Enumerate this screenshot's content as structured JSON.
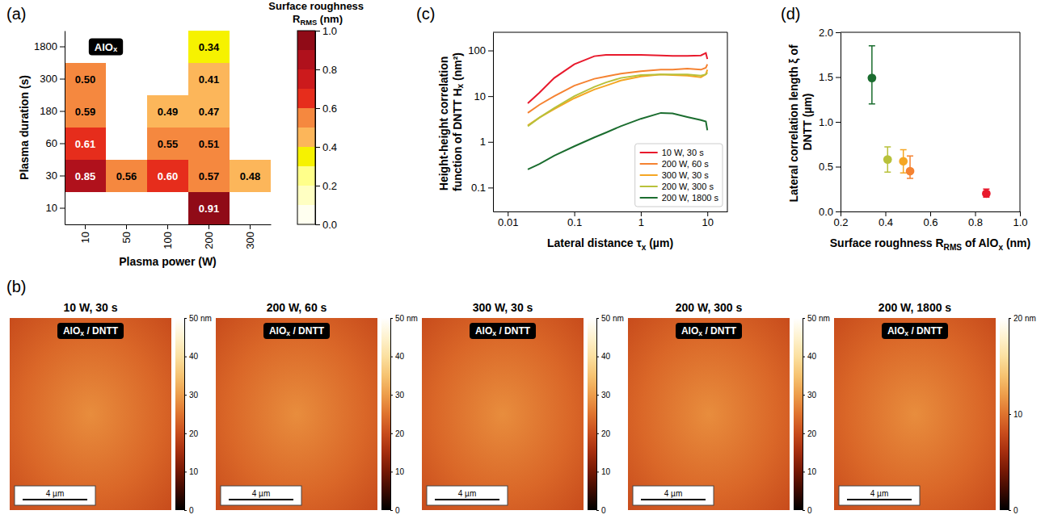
{
  "chart_data": [
    {
      "type": "heatmap",
      "panel": "(a)",
      "label": "AlOx",
      "x": [
        "10",
        "50",
        "100",
        "200",
        "300"
      ],
      "y": [
        "10",
        "30",
        "60",
        "180",
        "300",
        "1800"
      ],
      "xlabel": "Plasma power (W)",
      "ylabel": "Plasma duration (s)",
      "values": [
        [
          null,
          null,
          null,
          0.91,
          null
        ],
        [
          0.85,
          0.56,
          0.6,
          0.57,
          0.48
        ],
        [
          0.61,
          null,
          0.55,
          0.51,
          null
        ],
        [
          0.59,
          null,
          0.49,
          0.47,
          null
        ],
        [
          0.5,
          null,
          null,
          0.41,
          null
        ],
        [
          null,
          null,
          null,
          0.34,
          null
        ]
      ],
      "value_labels": [
        [
          null,
          null,
          null,
          "0.91",
          null
        ],
        [
          "0.85",
          "0.56",
          "0.60",
          "0.57",
          "0.48"
        ],
        [
          "0.61",
          null,
          "0.55",
          "0.51",
          null
        ],
        [
          "0.59",
          null,
          "0.49",
          "0.47",
          null
        ],
        [
          "0.50",
          null,
          null,
          "0.41",
          null
        ],
        [
          null,
          null,
          null,
          "0.34",
          null
        ]
      ],
      "data_labels": true,
      "colorbar_title": "Surface roughness RRMS (nm)",
      "clim": [
        0,
        1
      ],
      "cticks": [
        {
          "value": 0,
          "label": "0.0"
        },
        0.2,
        0.4,
        0.6,
        0.8,
        {
          "value": 1,
          "label": "1.0"
        }
      ]
    },
    {
      "type": "image",
      "panel": "(b)",
      "title": "10 W, 30 s",
      "label": "AlOx / DNTT",
      "xlim": [
        0,
        10
      ],
      "scale_bar": "4 µm",
      "scale_bar_length": 4,
      "clim": [
        0,
        50
      ],
      "cticks": [
        0,
        10,
        20,
        30,
        40,
        {
          "value": 50,
          "label": "50 nm"
        }
      ]
    },
    {
      "type": "image",
      "title": "200 W, 60 s",
      "label": "AlOx / DNTT",
      "xlim": [
        0,
        10
      ],
      "scale_bar": "4 µm",
      "scale_bar_length": 4,
      "clim": [
        0,
        50
      ],
      "cticks": [
        0,
        10,
        20,
        30,
        40,
        {
          "value": 50,
          "label": "50 nm"
        }
      ]
    },
    {
      "type": "image",
      "title": "300 W, 30 s",
      "label": "AlOx / DNTT",
      "xlim": [
        0,
        10
      ],
      "scale_bar": "4 µm",
      "scale_bar_length": 4,
      "clim": [
        0,
        50
      ],
      "cticks": [
        0,
        10,
        20,
        30,
        40,
        {
          "value": 50,
          "label": "50 nm"
        }
      ]
    },
    {
      "type": "image",
      "title": "200 W, 300 s",
      "label": "AlOx / DNTT",
      "xlim": [
        0,
        10
      ],
      "scale_bar": "4 µm",
      "scale_bar_length": 4,
      "clim": [
        0,
        50
      ],
      "cticks": [
        0,
        10,
        20,
        30,
        40,
        {
          "value": 50,
          "label": "50 nm"
        }
      ]
    },
    {
      "type": "image",
      "title": "200 W, 1800 s",
      "label": "AlOx / DNTT",
      "xlim": [
        0,
        10
      ],
      "scale_bar": "4 µm",
      "scale_bar_length": 4,
      "clim": [
        0,
        20
      ],
      "cticks": [
        0,
        10,
        {
          "value": 20,
          "label": "20 nm"
        }
      ]
    },
    {
      "type": "line",
      "panel": "(c)",
      "xlabel": "Lateral distance τx (µm)",
      "ylabel": "Height-height correlation function of DNTT Hx (nm²)",
      "log": true,
      "xlim": [
        0.006,
        20
      ],
      "ylim": [
        0.03,
        250
      ],
      "xticks": [
        0.01,
        0.1,
        1,
        10
      ],
      "yticks": [
        0.1,
        1,
        10,
        100
      ],
      "grid": false,
      "legend": "lower right",
      "line_style": "solid",
      "x": [
        0.02,
        0.03,
        0.05,
        0.1,
        0.2,
        0.3,
        0.5,
        1,
        2,
        3,
        5,
        8,
        9.5,
        10
      ],
      "series": [
        {
          "name": "10 W, 30 s",
          "color": "#e8192c",
          "values": [
            7,
            12,
            25,
            50,
            75,
            80,
            80,
            80,
            78,
            76,
            76,
            78,
            88,
            65
          ]
        },
        {
          "name": "200 W, 60 s",
          "color": "#f58231",
          "values": [
            4.3,
            6.5,
            10,
            17,
            24,
            27,
            31,
            35,
            38,
            38,
            40,
            38,
            42,
            50
          ]
        },
        {
          "name": "300 W, 30 s",
          "color": "#f5a623",
          "values": [
            2.3,
            3.4,
            5.2,
            9,
            14,
            17,
            22,
            27,
            30,
            29,
            28,
            26,
            30,
            38
          ]
        },
        {
          "name": "200 W, 300 s",
          "color": "#b8c13a",
          "values": [
            2.2,
            3.4,
            5.5,
            10,
            16,
            20,
            25,
            29,
            30,
            30,
            30,
            28,
            30,
            33
          ]
        },
        {
          "name": "200 W, 1800 s",
          "color": "#1b6d2f",
          "values": [
            0.25,
            0.33,
            0.5,
            0.8,
            1.25,
            1.6,
            2.2,
            3.2,
            4.3,
            4.2,
            3.5,
            3,
            2.8,
            1.8
          ]
        }
      ]
    },
    {
      "type": "scatter",
      "panel": "(d)",
      "xlabel": "Surface roughness RRMS of AlOx (nm)",
      "ylabel": "Lateral correlation length ξ of DNTT (µm)",
      "xlim": [
        0.2,
        1
      ],
      "ylim": [
        0,
        2
      ],
      "xticks": [
        0.2,
        0.4,
        0.6,
        0.8,
        {
          "value": 1,
          "label": "1.0"
        }
      ],
      "yticks": [
        {
          "value": 0,
          "label": "0.0"
        },
        0.5,
        {
          "value": 1,
          "label": "1.0"
        },
        1.5,
        {
          "value": 2,
          "label": "2.0"
        }
      ],
      "grid": false,
      "marker": "circle",
      "x": [
        0.34,
        0.41,
        0.48,
        0.51,
        0.85
      ],
      "values": [
        1.49,
        0.58,
        0.56,
        0.45,
        0.2
      ],
      "error_upper": [
        0.36,
        0.14,
        0.13,
        0.17,
        0.05
      ],
      "error_lower": [
        0.29,
        0.14,
        0.13,
        0.08,
        0.04
      ],
      "colors": [
        "#1b6d2f",
        "#b8c13a",
        "#f5a623",
        "#f58231",
        "#e8192c"
      ]
    }
  ]
}
